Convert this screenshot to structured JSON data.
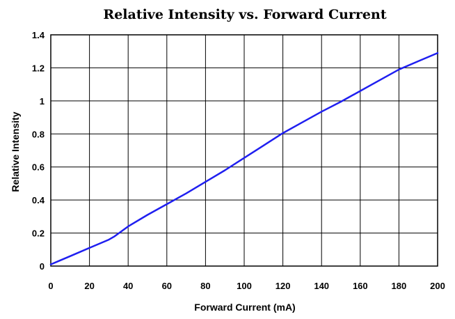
{
  "chart_data": {
    "type": "line",
    "title": "Relative Intensity vs. Forward Current",
    "xlabel": "Forward Current (mA)",
    "ylabel": "Relative Intensity",
    "xlim": [
      0,
      200
    ],
    "ylim": [
      0,
      1.4
    ],
    "x_ticks": [
      "0",
      "20",
      "40",
      "60",
      "80",
      "100",
      "120",
      "140",
      "160",
      "180",
      "200"
    ],
    "y_ticks": [
      "0",
      "0.2",
      "0.4",
      "0.6",
      "0.8",
      "1",
      "1.2",
      "1.4"
    ],
    "grid": true,
    "legend": "none",
    "colors": {
      "series": "#1f1ff0",
      "grid": "#000000"
    },
    "series": [
      {
        "x": [
          0,
          5,
          10,
          20,
          30,
          33,
          40,
          50,
          60,
          70,
          80,
          90,
          100,
          110,
          120,
          130,
          140,
          150,
          160,
          170,
          180,
          190,
          200
        ],
        "y": [
          0.01,
          0.035,
          0.06,
          0.11,
          0.16,
          0.18,
          0.24,
          0.31,
          0.375,
          0.44,
          0.51,
          0.58,
          0.655,
          0.73,
          0.805,
          0.87,
          0.935,
          0.995,
          1.06,
          1.125,
          1.19,
          1.24,
          1.29
        ]
      }
    ]
  }
}
